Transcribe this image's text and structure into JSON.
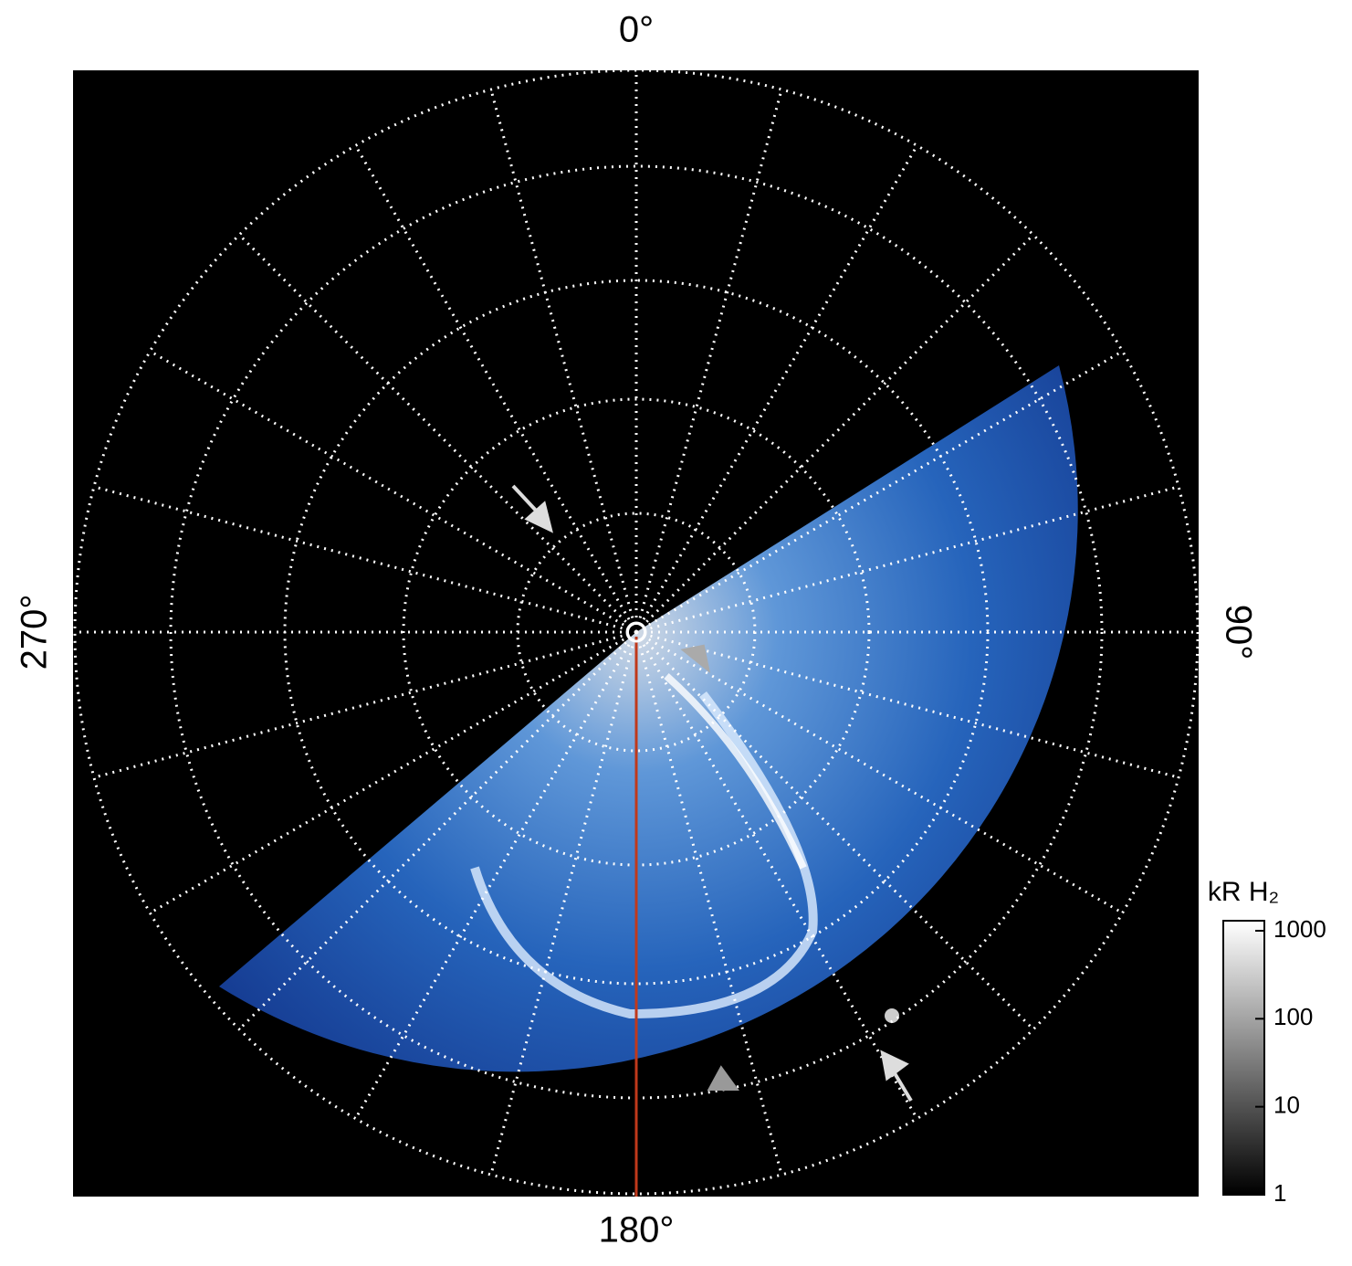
{
  "chart_data": {
    "type": "polar",
    "thetaticks": [
      {
        "value": 0,
        "label": "0°"
      },
      {
        "value": 90,
        "label": "90°"
      },
      {
        "value": 180,
        "label": "180°"
      },
      {
        "value": 270,
        "label": "270°"
      }
    ],
    "colorbar": {
      "title": "kR H₂",
      "log": true,
      "clim": [
        1,
        1300
      ],
      "ticks": [
        1,
        10,
        100,
        1000
      ]
    },
    "grid": true
  }
}
